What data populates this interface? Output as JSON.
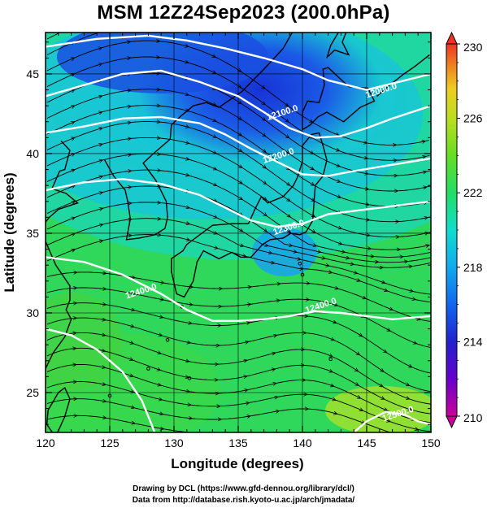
{
  "title": "MSM 12Z24Sep2023 (200.0hPa)",
  "map": {
    "projection": "equirectangular",
    "lon_range": [
      120,
      150
    ],
    "lat_range": [
      22.5,
      47.6
    ],
    "x_ticks": [
      120,
      125,
      130,
      135,
      140,
      145,
      150
    ],
    "x_tick_labels": [
      "120",
      "125",
      "130",
      "135",
      "140",
      "145",
      "150"
    ],
    "y_ticks": [
      25,
      30,
      35,
      40,
      45
    ],
    "y_tick_labels": [
      "25",
      "30",
      "35",
      "40",
      "45"
    ],
    "xlabel": "Longitude (degrees)",
    "ylabel": "Latitude  (degrees)",
    "field": "temperature (shaded)",
    "vectors": "wind streamlines",
    "contours": [
      {
        "value": 12000,
        "label": "12000.0",
        "label_lon": 146.2,
        "label_lat": 43.8,
        "points": [
          [
            120,
            46.7
          ],
          [
            124,
            47.2
          ],
          [
            128,
            47.4
          ],
          [
            131,
            47.1
          ],
          [
            134,
            46.6
          ],
          [
            137,
            46.0
          ],
          [
            140,
            45.3
          ],
          [
            142,
            44.6
          ],
          [
            145,
            44.0
          ],
          [
            148,
            44.6
          ],
          [
            150,
            45.0
          ]
        ]
      },
      {
        "value": 12100,
        "label": "12100.0",
        "label_lon": 138.5,
        "label_lat": 42.4,
        "points": [
          [
            120,
            43.6
          ],
          [
            123,
            44.3
          ],
          [
            126,
            45.0
          ],
          [
            129,
            45.2
          ],
          [
            132,
            44.5
          ],
          [
            135,
            43.6
          ],
          [
            137,
            42.6
          ],
          [
            139,
            41.6
          ],
          [
            141,
            41.0
          ],
          [
            143,
            41.1
          ],
          [
            145,
            41.6
          ],
          [
            147,
            42.2
          ],
          [
            150,
            43.0
          ]
        ]
      },
      {
        "value": 12200,
        "label": "12200.0",
        "label_lon": 138.2,
        "label_lat": 39.7,
        "points": [
          [
            120,
            41.3
          ],
          [
            123,
            41.7
          ],
          [
            126,
            42.2
          ],
          [
            129,
            42.3
          ],
          [
            132,
            41.9
          ],
          [
            134,
            41.2
          ],
          [
            136,
            40.3
          ],
          [
            138,
            39.5
          ],
          [
            140,
            38.7
          ],
          [
            142,
            38.6
          ],
          [
            144,
            38.9
          ],
          [
            147,
            39.3
          ],
          [
            150,
            39.7
          ]
        ]
      },
      {
        "value": 12300,
        "label": "12300.0",
        "label_lon": 139.0,
        "label_lat": 35.2,
        "points": [
          [
            120,
            37.7
          ],
          [
            123,
            38.2
          ],
          [
            126,
            38.4
          ],
          [
            129,
            38.1
          ],
          [
            132,
            37.4
          ],
          [
            134,
            36.6
          ],
          [
            136,
            35.8
          ],
          [
            138,
            35.4
          ],
          [
            140,
            35.6
          ],
          [
            142,
            36.2
          ],
          [
            145,
            36.5
          ],
          [
            148,
            36.8
          ],
          [
            150,
            37.0
          ]
        ]
      },
      {
        "value": 12400,
        "label": "12400.0",
        "label_lon": 141.5,
        "label_lat": 30.3,
        "points": [
          [
            120,
            33.5
          ],
          [
            123,
            33.2
          ],
          [
            126,
            32.4
          ],
          [
            129,
            31.2
          ],
          [
            131,
            30.2
          ],
          [
            133,
            29.5
          ],
          [
            135,
            29.5
          ],
          [
            137,
            29.6
          ],
          [
            139,
            29.8
          ],
          [
            141,
            30.1
          ],
          [
            143,
            30.0
          ],
          [
            145,
            29.8
          ],
          [
            147,
            29.6
          ],
          [
            150,
            29.8
          ]
        ]
      },
      {
        "value": 12400,
        "label": "12400.0",
        "label_lon": 127.5,
        "label_lat": 31.2,
        "points": [
          [
            120,
            29.0
          ],
          [
            122,
            28.6
          ],
          [
            124,
            27.7
          ],
          [
            126,
            26.3
          ],
          [
            127.5,
            24.5
          ],
          [
            128.5,
            22.5
          ]
        ]
      },
      {
        "value": 12500,
        "label": "12500.0",
        "label_lon": 147.5,
        "label_lat": 23.5,
        "points": [
          [
            144,
            22.5
          ],
          [
            145,
            23.2
          ],
          [
            146.5,
            23.8
          ],
          [
            148,
            23.6
          ],
          [
            149,
            23.2
          ],
          [
            150,
            23.0
          ]
        ]
      }
    ],
    "colorbar": {
      "min": 210,
      "max": 230,
      "tick_values": [
        210,
        214,
        218,
        222,
        226,
        230
      ],
      "tick_labels": [
        "210",
        "214",
        "218",
        "222",
        "226",
        "230"
      ],
      "colors": [
        "#cc0099",
        "#9900cc",
        "#3322cc",
        "#1155ee",
        "#1199ee",
        "#11ccdd",
        "#11ddaa",
        "#22dd44",
        "#66dd22",
        "#aadd22",
        "#dddd22",
        "#eeaa22",
        "#ee6622",
        "#ee3322"
      ]
    }
  },
  "credits": {
    "line1": "Drawing by DCL (https://www.gfd-dennou.org/library/dcl/)",
    "line2": "Data from http://database.rish.kyoto-u.ac.jp/arch/jmadata/"
  }
}
